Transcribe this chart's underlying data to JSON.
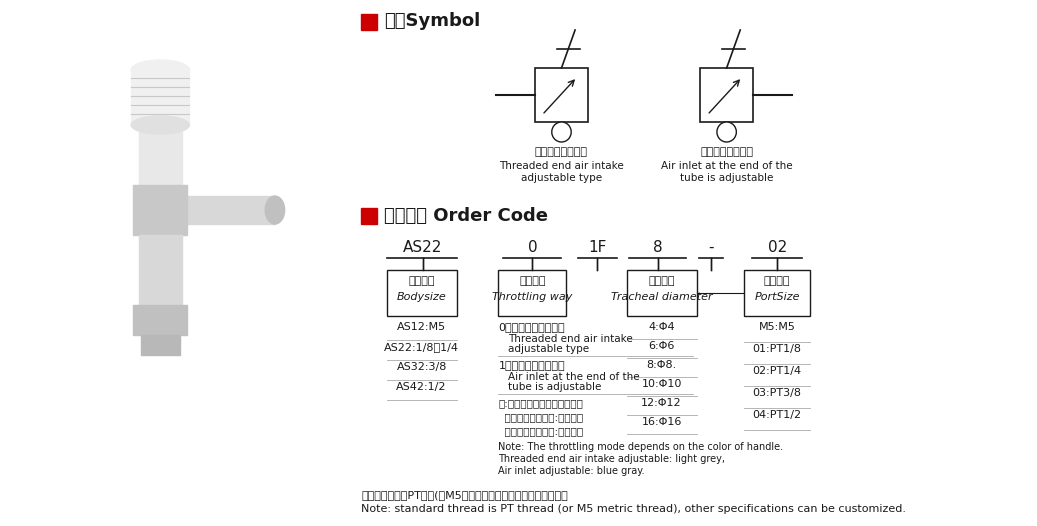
{
  "bg_color": "#ffffff",
  "title_symbol": "符号Symbol",
  "title_order": "订货型号 Order Code",
  "red_color": "#cc0000",
  "text_color": "#1a1a1a",
  "symbol1_cn": "螺纹端进气可调型",
  "symbol1_en": "Threaded end air intake\nadjustable type",
  "symbol2_cn": "气管端进气可调型",
  "symbol2_en": "Air inlet at the end of the\ntube is adjustable",
  "order_codes": [
    "AS22",
    "0",
    "1F",
    "8",
    "-",
    "02"
  ],
  "col1_header_cn": "阀体大小",
  "col1_header_en": "Bodysize",
  "col1_items": [
    "AS12:M5",
    "AS22:1/8、1/4",
    "AS32:3/8",
    "AS42:1/2"
  ],
  "col2_header_cn": "节流方式",
  "col2_header_en": "Throttling way",
  "col2_item0_cn": "0：螺纹端进气可调型",
  "col2_item0_en": "Threaded end air intake\nadjustable type",
  "col2_item1_cn": "1：气管端进气可调型",
  "col2_item1_en": "Air inlet at the end of the\ntube is adjustable",
  "col2_note_cn1": "注:节流方式靠手柄颜色区分，",
  "col2_note_cn2": "  螺纹端进气可调型:浅灰色，",
  "col2_note_cn3": "  气管端进气可调型:蓝灰色。",
  "col2_note_en1": "Note: The throttling mode depends on the color of handle.",
  "col2_note_en2": "Threaded end air intake adjustable: light grey,",
  "col2_note_en3": "Air inlet adjustable: blue gray.",
  "col3_header_cn": "气管外径",
  "col3_header_en": "Tracheal diameter",
  "col3_items": [
    "4:Φ4",
    "6:Φ6",
    "8:Φ8.",
    "10:Φ10",
    "12:Φ12",
    "16:Φ16"
  ],
  "col4_header_cn": "螺纹接口",
  "col4_header_en": "PortSize",
  "col4_items": [
    "M5:M5",
    "01:PT1/8",
    "02:PT1/4",
    "03:PT3/8",
    "04:PT1/2"
  ],
  "footer_cn": "注：标准螺纹为PT螺纹(或M5公制螺纹），其余规格螺纹可定制。",
  "footer_en": "Note: standard thread is PT thread (or M5 metric thread), other specifications can be customized."
}
